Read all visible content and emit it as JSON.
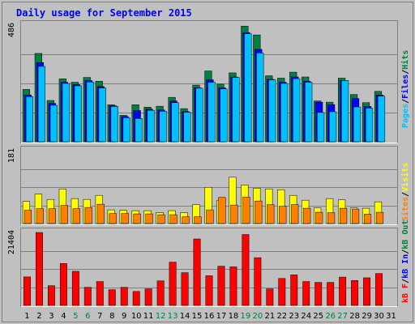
{
  "title": "Daily usage for September 2015",
  "colors": {
    "background": "#c0c0c0",
    "frame_dark": "#808080",
    "frame_light": "#ffffff",
    "title_text": "#0000ff",
    "pages": "#00c0ff",
    "files": "#0000ff",
    "hits": "#008040",
    "visits": "#ffff00",
    "sites": "#ff8000",
    "kb_in": "#0000ff",
    "kb_out": "#008040",
    "kb_f": "#ff0000",
    "weekend_label": "#008040",
    "weekday_label": "#000000"
  },
  "chart_data": {
    "type": "bar",
    "title": "Daily usage for September 2015",
    "categories": [
      "1",
      "2",
      "3",
      "4",
      "5",
      "6",
      "7",
      "8",
      "9",
      "10",
      "11",
      "12",
      "13",
      "14",
      "15",
      "16",
      "17",
      "18",
      "19",
      "20",
      "21",
      "22",
      "23",
      "24",
      "25",
      "26",
      "27",
      "28",
      "29",
      "30",
      "31"
    ],
    "weekend_days": [
      "5",
      "6",
      "12",
      "13",
      "19",
      "20",
      "26",
      "27"
    ],
    "panels": [
      {
        "name": "hits-files-pages",
        "ymax_label": "486",
        "ymax": 486,
        "side_labels": [
          {
            "text": "Pages",
            "color": "#00c0ff"
          },
          {
            "text": "/",
            "color": "#000000"
          },
          {
            "text": "Files",
            "color": "#0000ff"
          },
          {
            "text": "/",
            "color": "#000000"
          },
          {
            "text": "Hits",
            "color": "#008040"
          }
        ],
        "series": [
          {
            "name": "Hits",
            "color": "#008040",
            "values": [
              218,
              368,
              172,
              262,
              248,
              268,
              252,
              154,
              110,
              154,
              144,
              148,
              185,
              138,
              236,
              295,
              240,
              287,
              482,
              445,
              275,
              265,
              290,
              270,
              170,
              165,
              265,
              197,
              163,
              210,
              0
            ]
          },
          {
            "name": "Files",
            "color": "#0000ff",
            "values": [
              195,
              330,
              160,
              248,
              238,
              255,
              230,
              150,
              105,
              130,
              136,
              132,
              170,
              126,
              225,
              258,
              225,
              270,
              455,
              385,
              260,
              248,
              270,
              252,
              165,
              155,
              255,
              180,
              147,
              195,
              0
            ]
          },
          {
            "name": "Pages",
            "color": "#00c0ff",
            "values": [
              188,
              314,
              152,
              243,
              233,
              249,
              224,
              147,
              100,
              97,
              131,
              127,
              163,
              123,
              223,
              248,
              220,
              268,
              450,
              370,
              258,
              243,
              263,
              248,
              122,
              125,
              255,
              145,
              140,
              190,
              0
            ]
          }
        ]
      },
      {
        "name": "visits-sites",
        "ymax_label": "181",
        "ymax": 181,
        "side_labels": [
          {
            "text": "Sites",
            "color": "#ff8000"
          },
          {
            "text": "/",
            "color": "#000000"
          },
          {
            "text": "Visits",
            "color": "#ffff00"
          }
        ],
        "series": [
          {
            "name": "Visits",
            "color": "#ffff00",
            "values": [
              55,
              73,
              60,
              86,
              62,
              60,
              70,
              34,
              33,
              32,
              32,
              27,
              32,
              27,
              47,
              90,
              58,
              115,
              96,
              88,
              86,
              84,
              70,
              58,
              39,
              62,
              59,
              39,
              38,
              54,
              0
            ]
          },
          {
            "name": "Sites",
            "color": "#ff8000",
            "values": [
              33,
              37,
              37,
              45,
              37,
              40,
              48,
              25,
              25,
              24,
              24,
              22,
              22,
              17,
              17,
              34,
              65,
              46,
              66,
              56,
              47,
              43,
              47,
              38,
              28,
              27,
              38,
              36,
              23,
              28,
              0
            ]
          }
        ]
      },
      {
        "name": "kbytes",
        "ymax_label": "21404",
        "ymax": 21404,
        "side_labels": [
          {
            "text": "kB F",
            "color": "#ff0000"
          },
          {
            "text": "/",
            "color": "#000000"
          },
          {
            "text": "kB In",
            "color": "#0000ff"
          },
          {
            "text": "/",
            "color": "#000000"
          },
          {
            "text": "kB Out",
            "color": "#008040"
          }
        ],
        "series": [
          {
            "name": "kB F",
            "color": "#ff0000",
            "values": [
              8350,
              21404,
              5780,
              12300,
              10000,
              5300,
              7000,
              4600,
              5300,
              4080,
              4850,
              7200,
              12700,
              9600,
              19500,
              8700,
              11500,
              11300,
              20800,
              14000,
              4850,
              7900,
              8950,
              7000,
              6750,
              6750,
              8300,
              7300,
              8100,
              9350,
              0
            ]
          }
        ]
      }
    ]
  }
}
